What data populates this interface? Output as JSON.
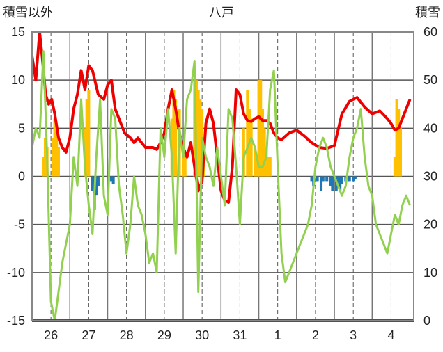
{
  "chart_data": {
    "type": "line",
    "title": "八戸",
    "ylabel_left": "積雪以外",
    "ylabel_right": "積雪",
    "left_ticks": [
      "15",
      "10",
      "5",
      "0",
      "-5",
      "-10",
      "-15"
    ],
    "right_ticks": [
      "60",
      "50",
      "40",
      "30",
      "20",
      "10",
      "0"
    ],
    "ylim_left": [
      -15,
      15
    ],
    "ylim_right": [
      0,
      60
    ],
    "x_range": [
      0,
      10.1
    ],
    "x_tick_labels": [
      "26",
      "27",
      "28",
      "29",
      "30",
      "31",
      "1",
      "2",
      "3",
      "4"
    ],
    "grid": true,
    "colors": {
      "red": "#ee0000",
      "green": "#92d050",
      "orange": "#ffc000",
      "blue": "#1f77b4",
      "purple": "#7030a0"
    },
    "series": [
      {
        "color": "red",
        "axis": "left",
        "x": [
          0,
          0.1,
          0.2,
          0.28,
          0.36,
          0.44,
          0.52,
          0.6,
          0.7,
          0.8,
          0.9,
          1.0,
          1.1,
          1.2,
          1.3,
          1.4,
          1.5,
          1.6,
          1.75,
          1.9,
          2.0,
          2.1,
          2.2,
          2.3,
          2.45,
          2.6,
          2.7,
          2.8,
          2.9,
          3.0,
          3.1,
          3.2,
          3.3,
          3.4,
          3.5,
          3.6,
          3.7,
          3.8,
          3.9,
          4.0,
          4.1,
          4.2,
          4.3,
          4.4,
          4.5,
          4.6,
          4.7,
          4.8,
          4.9,
          5.0,
          5.1,
          5.2,
          5.3,
          5.4,
          5.5,
          5.6,
          5.7,
          5.8,
          5.9,
          6.0,
          6.1,
          6.2,
          6.3,
          6.4,
          6.5,
          6.6,
          6.8,
          7.0,
          7.2,
          7.4,
          7.6,
          7.8,
          8.0,
          8.2,
          8.4,
          8.6,
          8.8,
          9.0,
          9.2,
          9.4,
          9.5,
          9.6,
          9.7,
          9.8,
          9.9,
          10.0
        ],
        "values": [
          12.5,
          10,
          15,
          12,
          8.5,
          7.5,
          8,
          6.5,
          4,
          3,
          2.5,
          4,
          7,
          8.5,
          11,
          9,
          11.5,
          11,
          8.5,
          8,
          9.5,
          10,
          7,
          6,
          4.5,
          4,
          3.5,
          4,
          3.5,
          3,
          3,
          3,
          2.8,
          3.5,
          4.5,
          7,
          9,
          7,
          4.5,
          3,
          2,
          3.5,
          1,
          -1.5,
          -0.5,
          5.5,
          7,
          5.5,
          2,
          -1.5,
          -2.5,
          -2.7,
          1,
          9,
          8.5,
          6.5,
          5.8,
          5.7,
          6,
          6.2,
          5.8,
          5.8,
          5.5,
          4.5,
          4,
          3.8,
          4.5,
          4.8,
          4.2,
          3.5,
          3,
          2.9,
          3.2,
          6.5,
          7.8,
          8.2,
          7.2,
          6.5,
          6.8,
          6.0,
          5.5,
          4.8,
          5,
          6,
          7,
          8
        ]
      },
      {
        "color": "green",
        "axis": "left",
        "x": [
          0,
          0.1,
          0.2,
          0.3,
          0.4,
          0.5,
          0.6,
          0.7,
          0.8,
          0.9,
          1.0,
          1.1,
          1.2,
          1.3,
          1.4,
          1.5,
          1.6,
          1.7,
          1.8,
          1.9,
          2.0,
          2.1,
          2.2,
          2.3,
          2.4,
          2.5,
          2.6,
          2.7,
          2.8,
          2.9,
          3.0,
          3.1,
          3.2,
          3.3,
          3.4,
          3.5,
          3.6,
          3.7,
          3.8,
          3.9,
          4.0,
          4.1,
          4.2,
          4.3,
          4.4,
          4.5,
          4.6,
          4.7,
          4.8,
          4.9,
          5.0,
          5.1,
          5.2,
          5.3,
          5.4,
          5.5,
          5.6,
          5.7,
          5.8,
          5.9,
          6.0,
          6.1,
          6.2,
          6.3,
          6.4,
          6.5,
          6.6,
          6.7,
          6.8,
          6.9,
          7.0,
          7.1,
          7.2,
          7.3,
          7.4,
          7.5,
          7.6,
          7.7,
          7.8,
          7.9,
          8.0,
          8.1,
          8.2,
          8.3,
          8.4,
          8.5,
          8.6,
          8.7,
          8.8,
          8.9,
          9.0,
          9.1,
          9.2,
          9.3,
          9.4,
          9.5,
          9.6,
          9.7,
          9.8,
          9.9,
          10.0
        ],
        "values": [
          3,
          5,
          4,
          13,
          2,
          -13,
          -15,
          -12,
          -9,
          -7,
          -5,
          2,
          -1,
          8,
          1,
          -3,
          -6,
          2,
          8,
          -2,
          -4,
          7,
          6,
          -1,
          -4,
          -8,
          -5,
          0,
          -3,
          -4,
          -6,
          -9,
          -8,
          -10,
          5,
          2,
          7,
          2,
          -8,
          5,
          2,
          8,
          9,
          12,
          -12,
          4,
          2,
          1,
          -1,
          3,
          0,
          -3,
          7,
          6,
          1,
          -5,
          2,
          3,
          4,
          3,
          1,
          1,
          2,
          9,
          11,
          1,
          -8,
          -11,
          -10,
          -9,
          -8,
          -7,
          -6,
          -5,
          -3,
          1,
          3,
          4,
          3,
          1,
          0,
          -1,
          -2,
          -1,
          2,
          4,
          5,
          7,
          2,
          -1,
          -2,
          -5,
          -6,
          -7,
          -8,
          -6,
          -4,
          -5,
          -3,
          -2,
          -3
        ]
      },
      {
        "color": "purple",
        "axis": "right",
        "x": [
          0,
          10.1
        ],
        "values": [
          0,
          0
        ]
      }
    ],
    "bars_pos": {
      "color": "orange",
      "axis": "left",
      "x": [
        0.3,
        0.35,
        0.4,
        0.55,
        0.6,
        0.65,
        0.7,
        1.4,
        1.45,
        1.5,
        3.7,
        3.75,
        3.8,
        3.9,
        4.0,
        4.05,
        4.3,
        4.35,
        4.4,
        4.45,
        4.5,
        4.55,
        5.6,
        5.7,
        5.75,
        5.8,
        5.9,
        5.95,
        6.0,
        6.05,
        6.1,
        6.15,
        6.2,
        6.25,
        6.3,
        9.6,
        9.65,
        9.7,
        9.75
      ],
      "values": [
        2,
        4,
        3,
        4,
        6,
        5,
        3,
        5,
        8,
        9,
        6,
        9,
        8,
        7,
        3,
        2,
        10,
        10,
        9,
        8,
        7,
        4,
        5,
        9,
        7,
        6,
        3,
        2,
        10,
        10,
        7,
        5,
        3,
        2,
        2,
        2,
        8,
        7,
        5
      ]
    },
    "bars_neg": {
      "color": "blue",
      "axis": "left",
      "x": [
        1.6,
        1.65,
        1.7,
        1.75,
        2.1,
        2.15,
        7.4,
        7.45,
        7.55,
        7.65,
        7.7,
        7.8,
        7.9,
        7.95,
        8.05,
        8.1,
        8.15,
        8.2,
        8.3,
        8.4,
        8.5,
        8.55
      ],
      "values": [
        -1.5,
        -3.5,
        -2,
        -1,
        -0.5,
        -0.8,
        -0.5,
        -1,
        -0.5,
        -1.5,
        -0.5,
        -0.5,
        -1,
        -1.5,
        -1.5,
        -1,
        -1.5,
        -0.8,
        -0.5,
        -0.5,
        -0.5,
        -0.3
      ]
    }
  }
}
